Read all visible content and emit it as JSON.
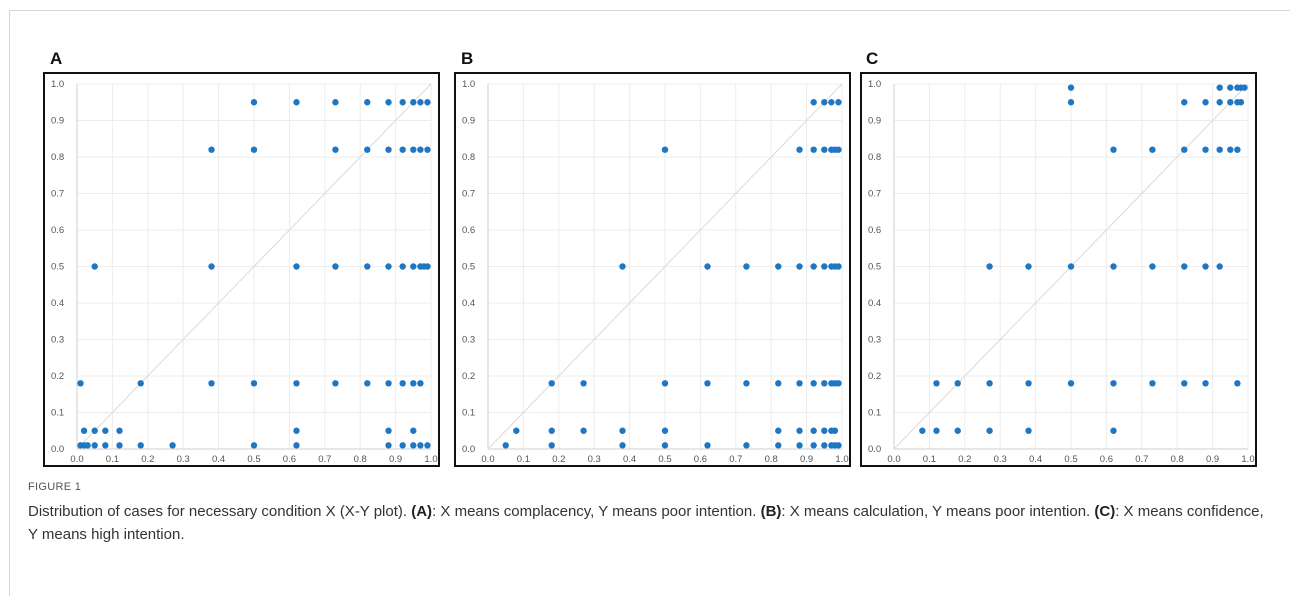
{
  "figure": {
    "label": "FIGURE 1",
    "caption": [
      {
        "text": "Distribution of cases for necessary condition X (X-Y plot). ",
        "bold": false
      },
      {
        "text": "(A)",
        "bold": true
      },
      {
        "text": ": X means complacency, Y means poor intention. ",
        "bold": false
      },
      {
        "text": "(B)",
        "bold": true
      },
      {
        "text": ": X means calculation, Y means poor intention. ",
        "bold": false
      },
      {
        "text": "(C)",
        "bold": true
      },
      {
        "text": ": X means confidence, Y means high intention.",
        "bold": false
      }
    ]
  },
  "style": {
    "point_color": "#1f77c4",
    "grid_color": "#ececec",
    "diagonal_color": "#dadada",
    "tick_color": "#555555"
  },
  "chart_data": [
    {
      "panel": "A",
      "type": "scatter",
      "xlim": [
        0,
        1
      ],
      "ylim": [
        0,
        1
      ],
      "xticks": [
        "0.0",
        "0.1",
        "0.2",
        "0.3",
        "0.4",
        "0.5",
        "0.6",
        "0.7",
        "0.8",
        "0.9",
        "1.0"
      ],
      "yticks": [
        "0.0",
        "0.1",
        "0.2",
        "0.3",
        "0.4",
        "0.5",
        "0.6",
        "0.7",
        "0.8",
        "0.9",
        "1.0"
      ],
      "grid": true,
      "diagonal": true,
      "points": [
        [
          0.01,
          0.01
        ],
        [
          0.02,
          0.01
        ],
        [
          0.03,
          0.01
        ],
        [
          0.05,
          0.01
        ],
        [
          0.08,
          0.01
        ],
        [
          0.12,
          0.01
        ],
        [
          0.18,
          0.01
        ],
        [
          0.27,
          0.01
        ],
        [
          0.5,
          0.01
        ],
        [
          0.62,
          0.01
        ],
        [
          0.88,
          0.01
        ],
        [
          0.92,
          0.01
        ],
        [
          0.95,
          0.01
        ],
        [
          0.97,
          0.01
        ],
        [
          0.99,
          0.01
        ],
        [
          0.02,
          0.05
        ],
        [
          0.05,
          0.05
        ],
        [
          0.08,
          0.05
        ],
        [
          0.12,
          0.05
        ],
        [
          0.62,
          0.05
        ],
        [
          0.88,
          0.05
        ],
        [
          0.95,
          0.05
        ],
        [
          0.01,
          0.18
        ],
        [
          0.18,
          0.18
        ],
        [
          0.38,
          0.18
        ],
        [
          0.5,
          0.18
        ],
        [
          0.62,
          0.18
        ],
        [
          0.73,
          0.18
        ],
        [
          0.82,
          0.18
        ],
        [
          0.88,
          0.18
        ],
        [
          0.92,
          0.18
        ],
        [
          0.95,
          0.18
        ],
        [
          0.97,
          0.18
        ],
        [
          0.05,
          0.5
        ],
        [
          0.38,
          0.5
        ],
        [
          0.62,
          0.5
        ],
        [
          0.73,
          0.5
        ],
        [
          0.82,
          0.5
        ],
        [
          0.88,
          0.5
        ],
        [
          0.92,
          0.5
        ],
        [
          0.95,
          0.5
        ],
        [
          0.97,
          0.5
        ],
        [
          0.98,
          0.5
        ],
        [
          0.99,
          0.5
        ],
        [
          0.38,
          0.82
        ],
        [
          0.5,
          0.82
        ],
        [
          0.73,
          0.82
        ],
        [
          0.82,
          0.82
        ],
        [
          0.88,
          0.82
        ],
        [
          0.92,
          0.82
        ],
        [
          0.95,
          0.82
        ],
        [
          0.97,
          0.82
        ],
        [
          0.99,
          0.82
        ],
        [
          0.5,
          0.95
        ],
        [
          0.62,
          0.95
        ],
        [
          0.73,
          0.95
        ],
        [
          0.82,
          0.95
        ],
        [
          0.88,
          0.95
        ],
        [
          0.92,
          0.95
        ],
        [
          0.95,
          0.95
        ],
        [
          0.97,
          0.95
        ],
        [
          0.99,
          0.95
        ]
      ]
    },
    {
      "panel": "B",
      "type": "scatter",
      "xlim": [
        0,
        1
      ],
      "ylim": [
        0,
        1
      ],
      "xticks": [
        "0.0",
        "0.1",
        "0.2",
        "0.3",
        "0.4",
        "0.5",
        "0.6",
        "0.7",
        "0.8",
        "0.9",
        "1.0"
      ],
      "yticks": [
        "0.0",
        "0.1",
        "0.2",
        "0.3",
        "0.4",
        "0.5",
        "0.6",
        "0.7",
        "0.8",
        "0.9",
        "1.0"
      ],
      "grid": true,
      "diagonal": true,
      "points": [
        [
          0.05,
          0.01
        ],
        [
          0.18,
          0.01
        ],
        [
          0.38,
          0.01
        ],
        [
          0.5,
          0.01
        ],
        [
          0.62,
          0.01
        ],
        [
          0.73,
          0.01
        ],
        [
          0.82,
          0.01
        ],
        [
          0.88,
          0.01
        ],
        [
          0.92,
          0.01
        ],
        [
          0.95,
          0.01
        ],
        [
          0.97,
          0.01
        ],
        [
          0.98,
          0.01
        ],
        [
          0.99,
          0.01
        ],
        [
          0.08,
          0.05
        ],
        [
          0.18,
          0.05
        ],
        [
          0.27,
          0.05
        ],
        [
          0.38,
          0.05
        ],
        [
          0.5,
          0.05
        ],
        [
          0.82,
          0.05
        ],
        [
          0.88,
          0.05
        ],
        [
          0.92,
          0.05
        ],
        [
          0.95,
          0.05
        ],
        [
          0.97,
          0.05
        ],
        [
          0.98,
          0.05
        ],
        [
          0.18,
          0.18
        ],
        [
          0.27,
          0.18
        ],
        [
          0.5,
          0.18
        ],
        [
          0.62,
          0.18
        ],
        [
          0.73,
          0.18
        ],
        [
          0.82,
          0.18
        ],
        [
          0.88,
          0.18
        ],
        [
          0.92,
          0.18
        ],
        [
          0.95,
          0.18
        ],
        [
          0.97,
          0.18
        ],
        [
          0.98,
          0.18
        ],
        [
          0.99,
          0.18
        ],
        [
          0.38,
          0.5
        ],
        [
          0.62,
          0.5
        ],
        [
          0.73,
          0.5
        ],
        [
          0.82,
          0.5
        ],
        [
          0.88,
          0.5
        ],
        [
          0.92,
          0.5
        ],
        [
          0.95,
          0.5
        ],
        [
          0.97,
          0.5
        ],
        [
          0.98,
          0.5
        ],
        [
          0.99,
          0.5
        ],
        [
          0.5,
          0.82
        ],
        [
          0.88,
          0.82
        ],
        [
          0.92,
          0.82
        ],
        [
          0.95,
          0.82
        ],
        [
          0.97,
          0.82
        ],
        [
          0.98,
          0.82
        ],
        [
          0.99,
          0.82
        ],
        [
          0.92,
          0.95
        ],
        [
          0.95,
          0.95
        ],
        [
          0.97,
          0.95
        ],
        [
          0.99,
          0.95
        ]
      ]
    },
    {
      "panel": "C",
      "type": "scatter",
      "xlim": [
        0,
        1
      ],
      "ylim": [
        0,
        1
      ],
      "xticks": [
        "0.0",
        "0.1",
        "0.2",
        "0.3",
        "0.4",
        "0.5",
        "0.6",
        "0.7",
        "0.8",
        "0.9",
        "1.0"
      ],
      "yticks": [
        "0.0",
        "0.1",
        "0.2",
        "0.3",
        "0.4",
        "0.5",
        "0.6",
        "0.7",
        "0.8",
        "0.9",
        "1.0"
      ],
      "grid": true,
      "diagonal": true,
      "points": [
        [
          0.08,
          0.05
        ],
        [
          0.12,
          0.05
        ],
        [
          0.18,
          0.05
        ],
        [
          0.27,
          0.05
        ],
        [
          0.38,
          0.05
        ],
        [
          0.62,
          0.05
        ],
        [
          0.12,
          0.18
        ],
        [
          0.18,
          0.18
        ],
        [
          0.27,
          0.18
        ],
        [
          0.38,
          0.18
        ],
        [
          0.5,
          0.18
        ],
        [
          0.62,
          0.18
        ],
        [
          0.73,
          0.18
        ],
        [
          0.82,
          0.18
        ],
        [
          0.88,
          0.18
        ],
        [
          0.97,
          0.18
        ],
        [
          0.27,
          0.5
        ],
        [
          0.38,
          0.5
        ],
        [
          0.5,
          0.5
        ],
        [
          0.62,
          0.5
        ],
        [
          0.73,
          0.5
        ],
        [
          0.82,
          0.5
        ],
        [
          0.88,
          0.5
        ],
        [
          0.92,
          0.5
        ],
        [
          0.62,
          0.82
        ],
        [
          0.73,
          0.82
        ],
        [
          0.82,
          0.82
        ],
        [
          0.88,
          0.82
        ],
        [
          0.92,
          0.82
        ],
        [
          0.95,
          0.82
        ],
        [
          0.97,
          0.82
        ],
        [
          0.5,
          0.95
        ],
        [
          0.82,
          0.95
        ],
        [
          0.88,
          0.95
        ],
        [
          0.92,
          0.95
        ],
        [
          0.95,
          0.95
        ],
        [
          0.97,
          0.95
        ],
        [
          0.98,
          0.95
        ],
        [
          0.5,
          0.99
        ],
        [
          0.92,
          0.99
        ],
        [
          0.95,
          0.99
        ],
        [
          0.97,
          0.99
        ],
        [
          0.98,
          0.99
        ],
        [
          0.99,
          0.99
        ]
      ]
    }
  ]
}
